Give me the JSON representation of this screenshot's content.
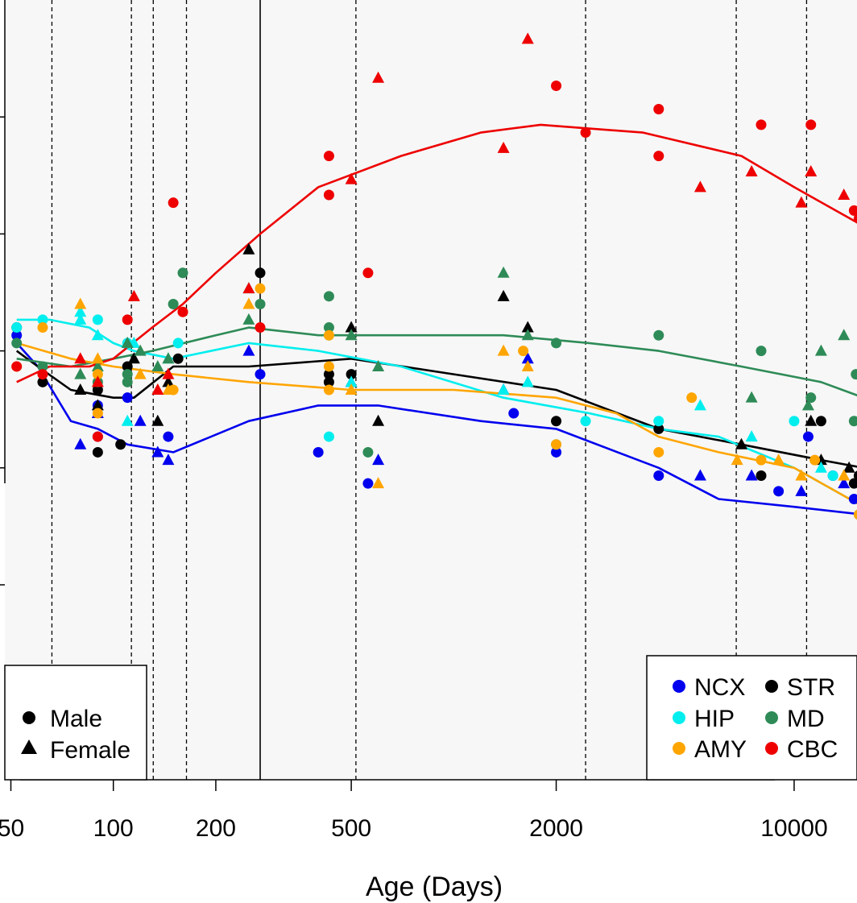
{
  "chart_data": {
    "type": "scatter",
    "title": "",
    "xlabel": "Age (Days)",
    "ylabel": "",
    "x_scale": "log",
    "xlim": [
      48,
      15300
    ],
    "ylim": [
      0,
      10
    ],
    "x_ticks": [
      {
        "value": 50,
        "label": "50"
      },
      {
        "value": 100,
        "label": "100"
      },
      {
        "value": 200,
        "label": "200"
      },
      {
        "value": 500,
        "label": "500"
      },
      {
        "value": 2000,
        "label": "2000"
      },
      {
        "value": 10000,
        "label": "10000"
      }
    ],
    "y_ticks": [
      2.5,
      4.0,
      5.5,
      7.0,
      8.5
    ],
    "background": "#f7f7f7",
    "grid": false,
    "vlines_dashed": [
      66,
      113,
      131,
      164,
      516,
      2440,
      6760,
      10880
    ],
    "vline_solid": 270,
    "shape_legend": {
      "position": "bottom-left",
      "entries": [
        {
          "label": "Male",
          "shape": "circle"
        },
        {
          "label": "Female",
          "shape": "triangle"
        }
      ]
    },
    "color_legend": {
      "position": "bottom-right",
      "entries": [
        {
          "label": "NCX",
          "color": "#0000ee"
        },
        {
          "label": "STR",
          "color": "#000000"
        },
        {
          "label": "HIP",
          "color": "#00eeee"
        },
        {
          "label": "MD",
          "color": "#2e8b57"
        },
        {
          "label": "AMY",
          "color": "#ffa500"
        },
        {
          "label": "CBC",
          "color": "#ee0000"
        }
      ]
    },
    "series": [
      {
        "name": "NCX",
        "color": "#0000ee",
        "trend": [
          [
            52,
            5.6
          ],
          [
            60,
            5.3
          ],
          [
            75,
            4.6
          ],
          [
            90,
            4.5
          ],
          [
            110,
            4.3
          ],
          [
            150,
            4.2
          ],
          [
            250,
            4.6
          ],
          [
            400,
            4.8
          ],
          [
            600,
            4.8
          ],
          [
            1200,
            4.6
          ],
          [
            2000,
            4.5
          ],
          [
            4000,
            4.0
          ],
          [
            6000,
            3.6
          ],
          [
            10000,
            3.5
          ],
          [
            16000,
            3.4
          ]
        ],
        "male": [
          [
            52,
            5.7
          ],
          [
            90,
            4.8
          ],
          [
            90,
            4.4
          ],
          [
            110,
            4.9
          ],
          [
            145,
            4.4
          ],
          [
            270,
            5.2
          ],
          [
            400,
            4.2
          ],
          [
            560,
            3.8
          ],
          [
            1500,
            4.7
          ],
          [
            2000,
            4.2
          ],
          [
            4000,
            3.9
          ],
          [
            9000,
            3.7
          ],
          [
            11000,
            4.4
          ],
          [
            13000,
            3.9
          ],
          [
            15000,
            3.6
          ]
        ],
        "female": [
          [
            80,
            4.3
          ],
          [
            90,
            4.7
          ],
          [
            120,
            4.6
          ],
          [
            135,
            4.2
          ],
          [
            145,
            4.1
          ],
          [
            250,
            5.5
          ],
          [
            500,
            5.1
          ],
          [
            600,
            4.1
          ],
          [
            1400,
            5.0
          ],
          [
            1650,
            5.4
          ],
          [
            5300,
            3.9
          ],
          [
            7500,
            3.9
          ],
          [
            10500,
            3.7
          ],
          [
            14000,
            3.8
          ]
        ]
      },
      {
        "name": "STR",
        "color": "#000000",
        "trend": [
          [
            52,
            5.5
          ],
          [
            60,
            5.3
          ],
          [
            75,
            5.0
          ],
          [
            100,
            4.9
          ],
          [
            115,
            4.9
          ],
          [
            150,
            5.3
          ],
          [
            250,
            5.3
          ],
          [
            500,
            5.4
          ],
          [
            1000,
            5.2
          ],
          [
            2000,
            5.0
          ],
          [
            4000,
            4.5
          ],
          [
            7000,
            4.3
          ],
          [
            12000,
            4.1
          ],
          [
            16000,
            4.0
          ]
        ],
        "male": [
          [
            52,
            5.8
          ],
          [
            62,
            5.1
          ],
          [
            90,
            5.0
          ],
          [
            90,
            4.2
          ],
          [
            105,
            4.3
          ],
          [
            110,
            5.3
          ],
          [
            155,
            5.4
          ],
          [
            270,
            6.5
          ],
          [
            430,
            5.2
          ],
          [
            430,
            5.1
          ],
          [
            500,
            5.2
          ],
          [
            2000,
            4.6
          ],
          [
            4000,
            4.5
          ],
          [
            8000,
            3.9
          ],
          [
            12000,
            4.6
          ],
          [
            15000,
            3.8
          ],
          [
            15500,
            3.9
          ]
        ],
        "female": [
          [
            80,
            5.0
          ],
          [
            90,
            4.8
          ],
          [
            115,
            5.4
          ],
          [
            135,
            4.6
          ],
          [
            145,
            5.1
          ],
          [
            250,
            6.8
          ],
          [
            500,
            5.8
          ],
          [
            600,
            4.6
          ],
          [
            1400,
            6.2
          ],
          [
            1650,
            5.8
          ],
          [
            7000,
            4.3
          ],
          [
            12000,
            4.1
          ],
          [
            11200,
            4.6
          ],
          [
            14500,
            4.0
          ],
          [
            16000,
            3.9
          ]
        ]
      },
      {
        "name": "HIP",
        "color": "#00eeee",
        "trend": [
          [
            52,
            5.9
          ],
          [
            65,
            5.9
          ],
          [
            85,
            5.8
          ],
          [
            100,
            5.6
          ],
          [
            115,
            5.5
          ],
          [
            150,
            5.4
          ],
          [
            250,
            5.6
          ],
          [
            400,
            5.5
          ],
          [
            700,
            5.3
          ],
          [
            1400,
            4.9
          ],
          [
            2500,
            4.7
          ],
          [
            4000,
            4.5
          ],
          [
            6000,
            4.4
          ],
          [
            10000,
            4.0
          ],
          [
            16000,
            3.5
          ]
        ],
        "male": [
          [
            52,
            5.8
          ],
          [
            62,
            5.9
          ],
          [
            90,
            5.9
          ],
          [
            110,
            5.6
          ],
          [
            155,
            5.6
          ],
          [
            430,
            5.7
          ],
          [
            430,
            4.4
          ],
          [
            2000,
            4.3
          ],
          [
            2440,
            4.6
          ],
          [
            4000,
            4.6
          ],
          [
            10000,
            4.6
          ],
          [
            13000,
            3.9
          ],
          [
            15500,
            3.4
          ]
        ],
        "female": [
          [
            80,
            6.0
          ],
          [
            80,
            5.9
          ],
          [
            90,
            5.7
          ],
          [
            110,
            4.6
          ],
          [
            115,
            5.6
          ],
          [
            145,
            5.4
          ],
          [
            250,
            6.3
          ],
          [
            500,
            5.1
          ],
          [
            1400,
            5.0
          ],
          [
            1650,
            5.1
          ],
          [
            5300,
            4.8
          ],
          [
            7500,
            4.4
          ],
          [
            12000,
            4.0
          ],
          [
            16000,
            3.9
          ]
        ]
      },
      {
        "name": "MD",
        "color": "#2e8b57",
        "trend": [
          [
            52,
            5.4
          ],
          [
            75,
            5.3
          ],
          [
            100,
            5.4
          ],
          [
            130,
            5.5
          ],
          [
            200,
            5.7
          ],
          [
            250,
            5.8
          ],
          [
            400,
            5.7
          ],
          [
            700,
            5.7
          ],
          [
            1400,
            5.7
          ],
          [
            2500,
            5.6
          ],
          [
            4000,
            5.5
          ],
          [
            7000,
            5.3
          ],
          [
            12000,
            5.1
          ],
          [
            16000,
            4.9
          ]
        ],
        "male": [
          [
            52,
            5.6
          ],
          [
            62,
            5.3
          ],
          [
            90,
            5.1
          ],
          [
            110,
            5.1
          ],
          [
            110,
            5.2
          ],
          [
            150,
            6.1
          ],
          [
            160,
            6.5
          ],
          [
            270,
            6.1
          ],
          [
            430,
            6.2
          ],
          [
            430,
            5.8
          ],
          [
            560,
            4.2
          ],
          [
            2000,
            5.6
          ],
          [
            4000,
            5.7
          ],
          [
            8000,
            5.5
          ],
          [
            11200,
            4.9
          ],
          [
            15000,
            4.6
          ],
          [
            15200,
            5.2
          ]
        ],
        "female": [
          [
            80,
            5.2
          ],
          [
            90,
            5.3
          ],
          [
            110,
            5.6
          ],
          [
            120,
            5.5
          ],
          [
            135,
            5.3
          ],
          [
            145,
            5.4
          ],
          [
            250,
            5.9
          ],
          [
            500,
            5.7
          ],
          [
            600,
            5.3
          ],
          [
            1400,
            6.5
          ],
          [
            1650,
            5.7
          ],
          [
            7500,
            4.9
          ],
          [
            11000,
            4.8
          ],
          [
            12000,
            5.5
          ],
          [
            14000,
            5.7
          ],
          [
            16000,
            4.3
          ]
        ]
      },
      {
        "name": "AMY",
        "color": "#ffa500",
        "trend": [
          [
            52,
            5.6
          ],
          [
            75,
            5.4
          ],
          [
            100,
            5.3
          ],
          [
            150,
            5.2
          ],
          [
            250,
            5.1
          ],
          [
            500,
            5.0
          ],
          [
            1000,
            5.0
          ],
          [
            2000,
            4.9
          ],
          [
            3000,
            4.7
          ],
          [
            4000,
            4.4
          ],
          [
            6000,
            4.2
          ],
          [
            10000,
            4.0
          ],
          [
            16000,
            3.5
          ]
        ],
        "male": [
          [
            52,
            5.3
          ],
          [
            62,
            5.8
          ],
          [
            90,
            4.7
          ],
          [
            90,
            5.2
          ],
          [
            150,
            5.0
          ],
          [
            160,
            6.0
          ],
          [
            270,
            6.3
          ],
          [
            430,
            5.0
          ],
          [
            430,
            5.3
          ],
          [
            430,
            5.7
          ],
          [
            1600,
            5.5
          ],
          [
            2000,
            4.3
          ],
          [
            4000,
            4.2
          ],
          [
            5000,
            4.9
          ],
          [
            8000,
            4.1
          ],
          [
            11500,
            4.1
          ],
          [
            15500,
            3.4
          ]
        ],
        "female": [
          [
            80,
            6.1
          ],
          [
            90,
            5.4
          ],
          [
            120,
            5.2
          ],
          [
            135,
            5.0
          ],
          [
            145,
            5.0
          ],
          [
            250,
            6.1
          ],
          [
            500,
            5.0
          ],
          [
            600,
            3.8
          ],
          [
            1400,
            5.5
          ],
          [
            1650,
            5.3
          ],
          [
            6800,
            4.1
          ],
          [
            9000,
            4.1
          ],
          [
            10500,
            3.9
          ],
          [
            14000,
            3.9
          ],
          [
            16000,
            4.2
          ]
        ]
      },
      {
        "name": "CBC",
        "color": "#ee0000",
        "trend": [
          [
            52,
            5.1
          ],
          [
            65,
            5.3
          ],
          [
            85,
            5.3
          ],
          [
            100,
            5.4
          ],
          [
            130,
            5.8
          ],
          [
            160,
            6.1
          ],
          [
            200,
            6.5
          ],
          [
            270,
            7.0
          ],
          [
            400,
            7.6
          ],
          [
            700,
            8.0
          ],
          [
            1200,
            8.3
          ],
          [
            1800,
            8.4
          ],
          [
            3600,
            8.3
          ],
          [
            7000,
            8.0
          ],
          [
            10000,
            7.6
          ],
          [
            16000,
            7.1
          ]
        ],
        "male": [
          [
            52,
            5.3
          ],
          [
            62,
            5.2
          ],
          [
            90,
            4.4
          ],
          [
            110,
            5.9
          ],
          [
            150,
            7.4
          ],
          [
            160,
            6.0
          ],
          [
            270,
            5.8
          ],
          [
            430,
            7.5
          ],
          [
            430,
            8.0
          ],
          [
            560,
            6.5
          ],
          [
            2000,
            8.9
          ],
          [
            2440,
            8.3
          ],
          [
            4000,
            8.6
          ],
          [
            4000,
            8.0
          ],
          [
            8000,
            8.4
          ],
          [
            11200,
            8.4
          ],
          [
            15000,
            7.3
          ],
          [
            15500,
            7.2
          ]
        ],
        "female": [
          [
            80,
            5.4
          ],
          [
            90,
            5.1
          ],
          [
            115,
            6.2
          ],
          [
            135,
            5.0
          ],
          [
            145,
            5.2
          ],
          [
            250,
            6.3
          ],
          [
            500,
            7.7
          ],
          [
            600,
            9.0
          ],
          [
            1400,
            8.1
          ],
          [
            1650,
            9.5
          ],
          [
            5300,
            7.6
          ],
          [
            7500,
            7.8
          ],
          [
            10500,
            7.4
          ],
          [
            11200,
            7.8
          ],
          [
            14000,
            7.5
          ],
          [
            16000,
            6.7
          ]
        ]
      }
    ]
  }
}
